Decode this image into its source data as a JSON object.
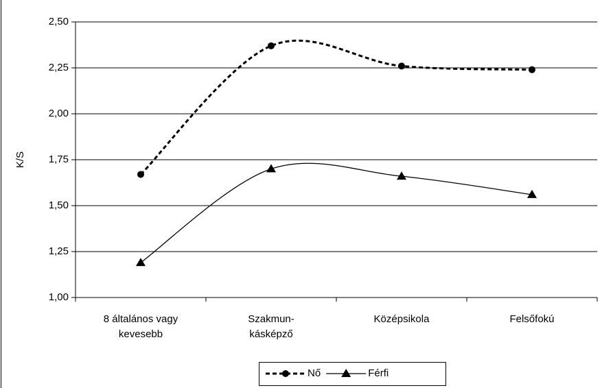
{
  "chart_data": {
    "type": "line",
    "ylabel": "K/S",
    "categories": [
      "8 általános vagy\nkevesebb",
      "Szakmun-\nkásképző",
      "Középsikola",
      "Felsőfokú"
    ],
    "series": [
      {
        "name": "Nő",
        "color": "#000000",
        "dash": true,
        "marker": "circle",
        "values": [
          1.67,
          2.37,
          2.26,
          2.24
        ]
      },
      {
        "name": "Férfi",
        "color": "#000000",
        "dash": false,
        "marker": "triangle",
        "values": [
          1.19,
          1.7,
          1.66,
          1.56
        ]
      }
    ],
    "ylim": [
      1.0,
      2.5
    ],
    "yticks": [
      {
        "value": 1.0,
        "label": "1,00"
      },
      {
        "value": 1.25,
        "label": "1,25"
      },
      {
        "value": 1.5,
        "label": "1,50"
      },
      {
        "value": 1.75,
        "label": "1,75"
      },
      {
        "value": 2.0,
        "label": "2,00"
      },
      {
        "value": 2.25,
        "label": "2,25"
      },
      {
        "value": 2.5,
        "label": "2,50"
      }
    ],
    "grid": true,
    "smooth": true,
    "legend": "bottom"
  }
}
